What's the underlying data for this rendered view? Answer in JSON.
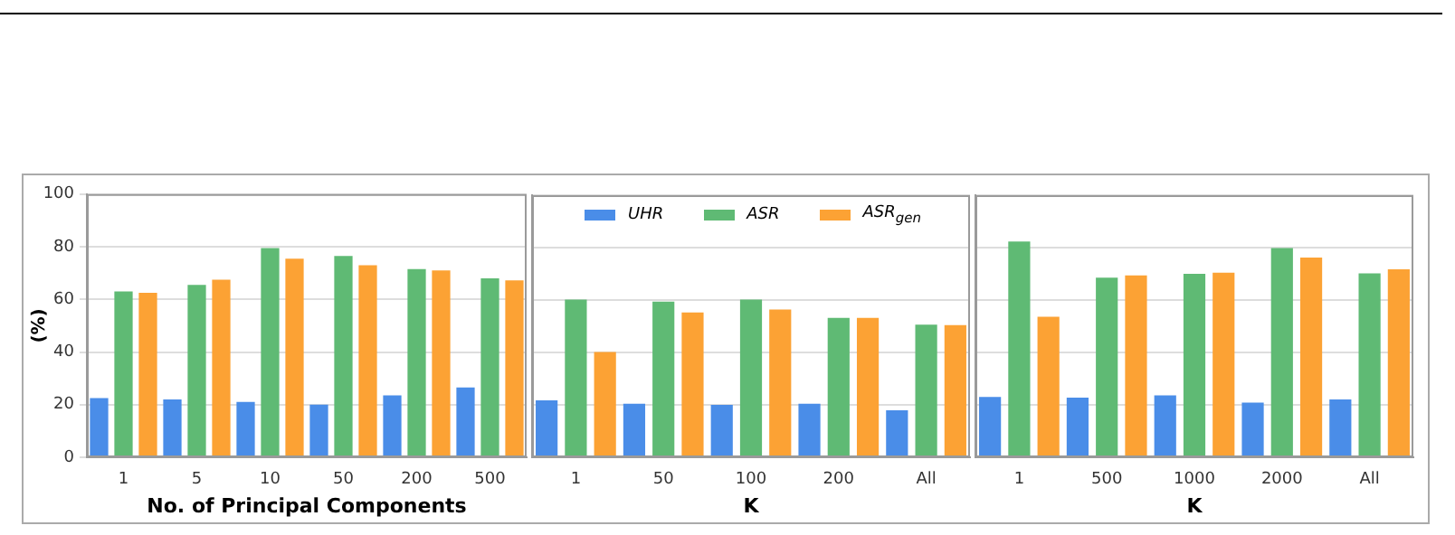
{
  "chart_data": [
    {
      "type": "bar",
      "xlabel": "No. of Principal Components",
      "ylabel": "(%)",
      "categories": [
        "1",
        "5",
        "10",
        "50",
        "200",
        "500"
      ],
      "series": [
        {
          "color": "#4a8de8",
          "values": [
            22.5,
            22,
            21,
            20,
            23.5,
            26.5
          ]
        },
        {
          "color": "#5fba74",
          "values": [
            63,
            65.5,
            79.5,
            76.5,
            71.5,
            68
          ]
        },
        {
          "color": "#fca234",
          "values": [
            62.5,
            67.5,
            75.5,
            73,
            71,
            67.2
          ]
        }
      ],
      "ylim": [
        0,
        100
      ],
      "yticks": [
        0,
        20,
        40,
        60,
        80,
        100
      ],
      "grid": "y"
    },
    {
      "type": "bar",
      "xlabel": "K",
      "categories": [
        "1",
        "50",
        "100",
        "200",
        "All"
      ],
      "series": [
        {
          "name": "UHR",
          "color": "#4a8de8",
          "values": [
            21.7,
            20.4,
            20,
            20.4,
            17.9
          ]
        },
        {
          "name": "ASR",
          "color": "#5fba74",
          "values": [
            60.2,
            59.4,
            60.2,
            53.2,
            50.6
          ]
        },
        {
          "name": "ASR$_{gen}$",
          "color": "#fca234",
          "values": [
            40.2,
            55.3,
            56.4,
            53.2,
            50.4
          ]
        }
      ],
      "ylim": [
        0,
        100
      ],
      "yticks": [
        0,
        20,
        40,
        60,
        80,
        100
      ],
      "grid": "y",
      "tick_labels": "x",
      "legend": "top"
    },
    {
      "type": "bar",
      "xlabel": "K",
      "categories": [
        "1",
        "500",
        "1000",
        "2000",
        "All"
      ],
      "series": [
        {
          "color": "#4a8de8",
          "values": [
            23,
            22.8,
            23.6,
            20.9,
            22.1
          ]
        },
        {
          "color": "#5fba74",
          "values": [
            82.3,
            68.5,
            70,
            79.8,
            70.2
          ]
        },
        {
          "color": "#fca234",
          "values": [
            53.6,
            69.4,
            70.4,
            76.2,
            71.7
          ]
        }
      ],
      "ylim": [
        0,
        100
      ],
      "yticks": [
        0,
        20,
        40,
        60,
        80,
        100
      ],
      "grid": "y",
      "tick_labels": "x"
    }
  ]
}
